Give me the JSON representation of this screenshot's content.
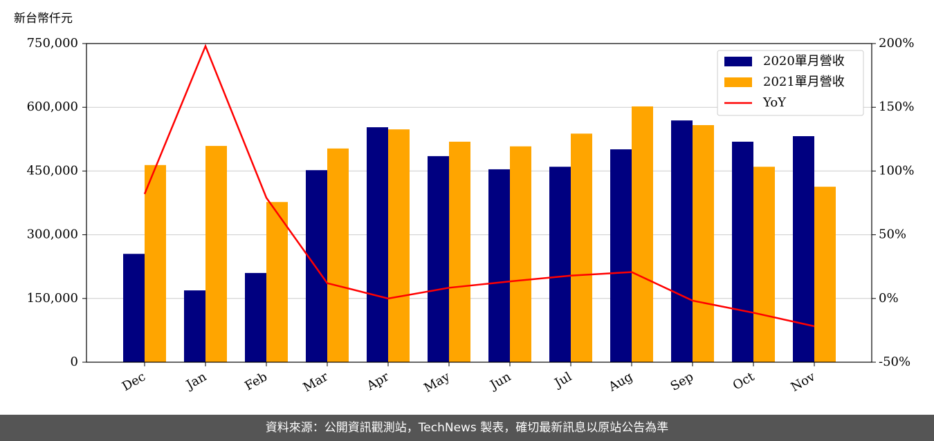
{
  "chart_data": {
    "type": "bar",
    "ylabel": "新台幣仟元",
    "footer": "資料來源：公開資訊觀測站，TechNews 製表，確切最新訊息以原站公告為準",
    "categories": [
      "Dec",
      "Jan",
      "Feb",
      "Mar",
      "Apr",
      "May",
      "Jun",
      "Jul",
      "Aug",
      "Sep",
      "Oct",
      "Nov"
    ],
    "series": [
      {
        "name": "2020單月營收",
        "color": "#000080",
        "type": "bar",
        "values": [
          255000,
          169000,
          210000,
          452000,
          553000,
          485000,
          454000,
          460000,
          501000,
          569000,
          519000,
          532000
        ]
      },
      {
        "name": "2021單月營收",
        "color": "#ffa500",
        "type": "bar",
        "values": [
          464000,
          509000,
          377000,
          503000,
          548000,
          519000,
          508000,
          538000,
          602000,
          558000,
          460000,
          413000
        ]
      },
      {
        "name": "YoY",
        "color": "#ff0000",
        "type": "line",
        "axis": "y2",
        "values": [
          82,
          198,
          79,
          12,
          0,
          8.4,
          13.4,
          17.9,
          20.7,
          -1.7,
          -11.2,
          -21.8
        ]
      }
    ],
    "ylim": [
      0,
      750000
    ],
    "yticks": [
      0,
      {
        "value": 150000,
        "label": "150,000"
      },
      {
        "value": 300000,
        "label": "300,000"
      },
      {
        "value": 450000,
        "label": "450,000"
      },
      {
        "value": 600000,
        "label": "600,000"
      },
      {
        "value": 750000,
        "label": "750,000"
      }
    ],
    "y2lim": [
      -50,
      200
    ],
    "y2ticks": [
      {
        "value": -50,
        "label": "-50%"
      },
      {
        "value": 0,
        "label": "0%"
      },
      {
        "value": 50,
        "label": "50%"
      },
      {
        "value": 100,
        "label": "100%"
      },
      {
        "value": 150,
        "label": "150%"
      },
      {
        "value": 200,
        "label": "200%"
      }
    ],
    "grid": true,
    "legend": "upper right"
  }
}
